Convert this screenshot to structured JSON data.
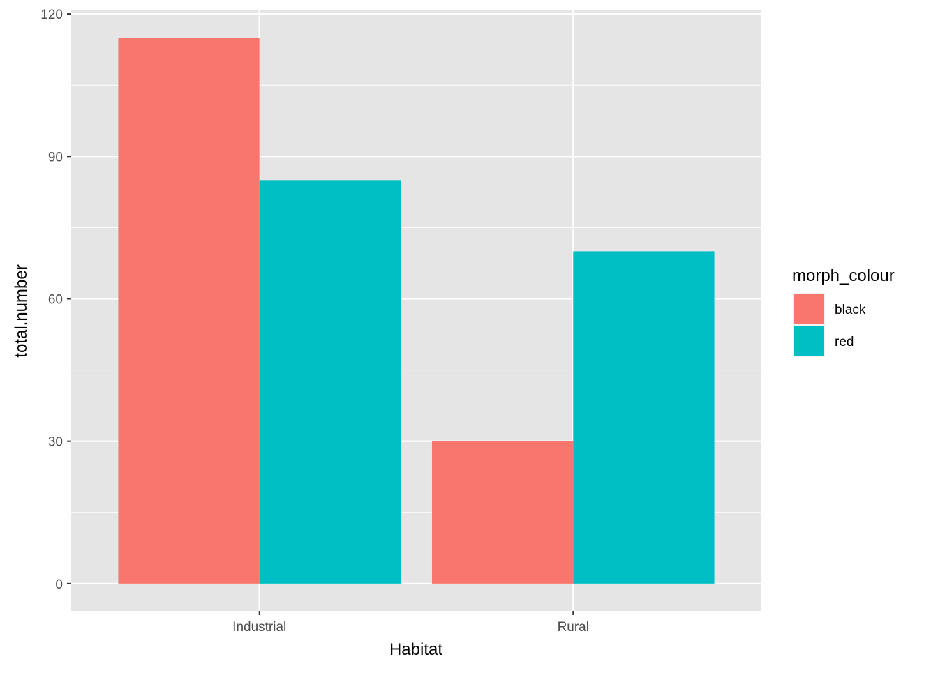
{
  "chart_data": {
    "type": "bar",
    "title": "",
    "xlabel": "Habitat",
    "ylabel": "total.number",
    "categories": [
      "Industrial",
      "Rural"
    ],
    "series": [
      {
        "name": "black",
        "color": "#F8766D",
        "values": [
          115,
          30
        ]
      },
      {
        "name": "red",
        "color": "#00BFC4",
        "values": [
          85,
          70
        ]
      }
    ],
    "yticks": [
      0,
      30,
      60,
      90,
      120
    ],
    "ylim": [
      -5.75,
      120.75
    ],
    "grid": true,
    "legend": {
      "title": "morph_colour",
      "placement": "right"
    },
    "panel_background": "#EBEBEB"
  }
}
